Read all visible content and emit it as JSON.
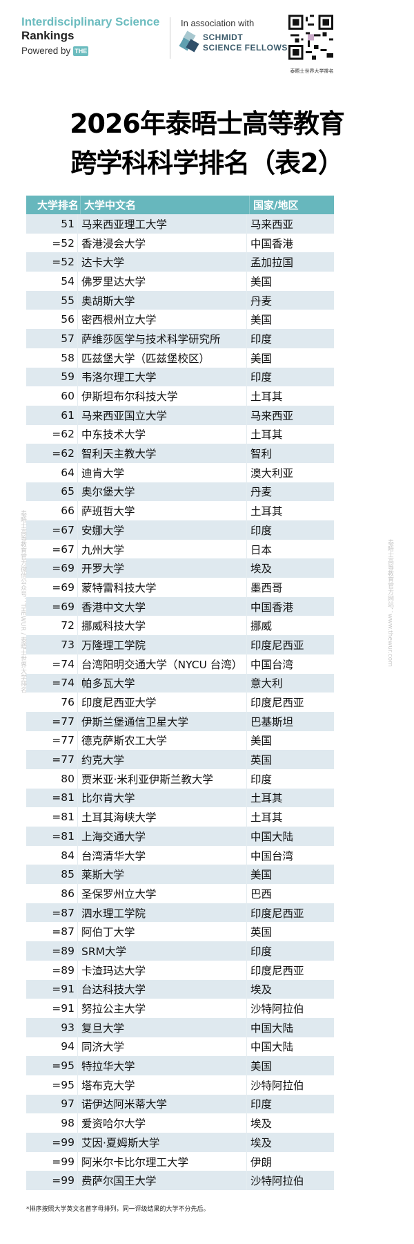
{
  "header": {
    "brand_line1": "Interdisciplinary Science",
    "brand_line2": "Rankings",
    "powered_by": "Powered by",
    "the_logo": "THE",
    "association": "In association with",
    "partner_line1": "SCHMIDT",
    "partner_line2": "SCIENCE FELLOWS",
    "qr_caption": "泰晤士世界大学排名"
  },
  "title": {
    "line1": "2026年泰晤士高等教育",
    "line2": "跨学科科学排名（表2）"
  },
  "table": {
    "columns": [
      "大学排名",
      "大学中文名",
      "国家/地区"
    ],
    "rows": [
      [
        "51",
        "马来西亚理工大学",
        "马来西亚"
      ],
      [
        "=52",
        "香港浸会大学",
        "中国香港"
      ],
      [
        "=52",
        "达卡大学",
        "孟加拉国"
      ],
      [
        "54",
        "佛罗里达大学",
        "美国"
      ],
      [
        "55",
        "奥胡斯大学",
        "丹麦"
      ],
      [
        "56",
        "密西根州立大学",
        "美国"
      ],
      [
        "57",
        "萨维莎医学与技术科学研究所",
        "印度"
      ],
      [
        "58",
        "匹兹堡大学（匹兹堡校区）",
        "美国"
      ],
      [
        "59",
        "韦洛尔理工大学",
        "印度"
      ],
      [
        "60",
        "伊斯坦布尔科技大学",
        "土耳其"
      ],
      [
        "61",
        "马来西亚国立大学",
        "马来西亚"
      ],
      [
        "=62",
        "中东技术大学",
        "土耳其"
      ],
      [
        "=62",
        "智利天主教大学",
        "智利"
      ],
      [
        "64",
        "迪肯大学",
        "澳大利亚"
      ],
      [
        "65",
        "奥尔堡大学",
        "丹麦"
      ],
      [
        "66",
        "萨班哲大学",
        "土耳其"
      ],
      [
        "=67",
        "安娜大学",
        "印度"
      ],
      [
        "=67",
        "九州大学",
        "日本"
      ],
      [
        "=69",
        "开罗大学",
        "埃及"
      ],
      [
        "=69",
        "蒙特雷科技大学",
        "墨西哥"
      ],
      [
        "=69",
        "香港中文大学",
        "中国香港"
      ],
      [
        "72",
        "挪威科技大学",
        "挪威"
      ],
      [
        "73",
        "万隆理工学院",
        "印度尼西亚"
      ],
      [
        "=74",
        "台湾阳明交通大学（NYCU 台湾）",
        "中国台湾"
      ],
      [
        "=74",
        "帕多瓦大学",
        "意大利"
      ],
      [
        "76",
        "印度尼西亚大学",
        "印度尼西亚"
      ],
      [
        "=77",
        "伊斯兰堡通信卫星大学",
        "巴基斯坦"
      ],
      [
        "=77",
        "德克萨斯农工大学",
        "美国"
      ],
      [
        "=77",
        "约克大学",
        "英国"
      ],
      [
        "80",
        "贾米亚·米利亚伊斯兰教大学",
        "印度"
      ],
      [
        "=81",
        "比尔肯大学",
        "土耳其"
      ],
      [
        "=81",
        "土耳其海峡大学",
        "土耳其"
      ],
      [
        "=81",
        "上海交通大学",
        "中国大陆"
      ],
      [
        "84",
        "台湾清华大学",
        "中国台湾"
      ],
      [
        "85",
        "莱斯大学",
        "美国"
      ],
      [
        "86",
        "圣保罗州立大学",
        "巴西"
      ],
      [
        "=87",
        "泗水理工学院",
        "印度尼西亚"
      ],
      [
        "=87",
        "阿伯丁大学",
        "英国"
      ],
      [
        "=89",
        "SRM大学",
        "印度"
      ],
      [
        "=89",
        "卡渣玛达大学",
        "印度尼西亚"
      ],
      [
        "=91",
        "台达科技大学",
        "埃及"
      ],
      [
        "=91",
        "努拉公主大学",
        "沙特阿拉伯"
      ],
      [
        "93",
        "复旦大学",
        "中国大陆"
      ],
      [
        "94",
        "同济大学",
        "中国大陆"
      ],
      [
        "=95",
        "特拉华大学",
        "美国"
      ],
      [
        "=95",
        "塔布克大学",
        "沙特阿拉伯"
      ],
      [
        "97",
        "诺伊达阿米蒂大学",
        "印度"
      ],
      [
        "98",
        "爱资哈尔大学",
        "埃及"
      ],
      [
        "=99",
        "艾因·夏姆斯大学",
        "埃及"
      ],
      [
        "=99",
        "阿米尔卡比尔理工大学",
        "伊朗"
      ],
      [
        "=99",
        "费萨尔国王大学",
        "沙特阿拉伯"
      ]
    ]
  },
  "footnote": "*排序按照大学英文名首字母排列，同一评级结果的大学不分先后。",
  "watermarks": {
    "left": "泰晤士高等教育官方微信公众号：THEWUR / 泰晤士世界大学排名",
    "right": "泰晤士高等教育官方网站：www.thewur.com"
  },
  "colors": {
    "header_teal": "#67b7bd",
    "brand_teal": "#6cbcbf",
    "row_alt": "#dfe9ef"
  }
}
